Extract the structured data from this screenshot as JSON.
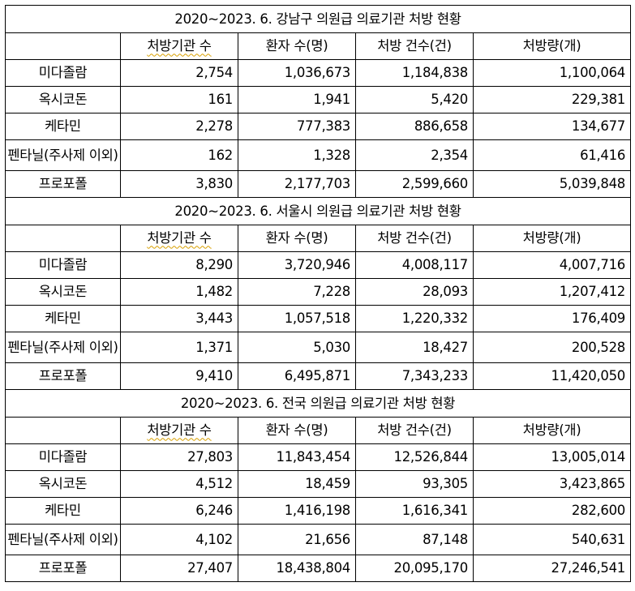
{
  "columns": [
    "처방기관 수",
    "환자 수(명)",
    "처방 건수(건)",
    "처방량(개)"
  ],
  "sections": [
    {
      "title": "2020~2023. 6. 강남구 의원급 의료기관 처방 현황",
      "rows": [
        {
          "drug": "미다졸람",
          "institutions": "2,754",
          "patients": "1,036,673",
          "prescriptions": "1,184,838",
          "quantity": "1,100,064"
        },
        {
          "drug": "옥시코돈",
          "institutions": "161",
          "patients": "1,941",
          "prescriptions": "5,420",
          "quantity": "229,381"
        },
        {
          "drug": "케타민",
          "institutions": "2,278",
          "patients": "777,383",
          "prescriptions": "886,658",
          "quantity": "134,677"
        },
        {
          "drug": "펜타닐(주사제 이외)",
          "institutions": "162",
          "patients": "1,328",
          "prescriptions": "2,354",
          "quantity": "61,416"
        },
        {
          "drug": "프로포폴",
          "institutions": "3,830",
          "patients": "2,177,703",
          "prescriptions": "2,599,660",
          "quantity": "5,039,848"
        }
      ]
    },
    {
      "title": "2020~2023. 6. 서울시 의원급 의료기관 처방 현황",
      "rows": [
        {
          "drug": "미다졸람",
          "institutions": "8,290",
          "patients": "3,720,946",
          "prescriptions": "4,008,117",
          "quantity": "4,007,716"
        },
        {
          "drug": "옥시코돈",
          "institutions": "1,482",
          "patients": "7,228",
          "prescriptions": "28,093",
          "quantity": "1,207,412"
        },
        {
          "drug": "케타민",
          "institutions": "3,443",
          "patients": "1,057,518",
          "prescriptions": "1,220,332",
          "quantity": "176,409"
        },
        {
          "drug": "펜타닐(주사제 이외)",
          "institutions": "1,371",
          "patients": "5,030",
          "prescriptions": "18,427",
          "quantity": "200,528"
        },
        {
          "drug": "프로포폴",
          "institutions": "9,410",
          "patients": "6,495,871",
          "prescriptions": "7,343,233",
          "quantity": "11,420,050"
        }
      ]
    },
    {
      "title": "2020~2023. 6. 전국 의원급 의료기관 처방 현황",
      "rows": [
        {
          "drug": "미다졸람",
          "institutions": "27,803",
          "patients": "11,843,454",
          "prescriptions": "12,526,844",
          "quantity": "13,005,014"
        },
        {
          "drug": "옥시코돈",
          "institutions": "4,512",
          "patients": "18,459",
          "prescriptions": "93,305",
          "quantity": "3,423,865"
        },
        {
          "drug": "케타민",
          "institutions": "6,246",
          "patients": "1,416,198",
          "prescriptions": "1,616,341",
          "quantity": "282,600"
        },
        {
          "drug": "펜타닐(주사제 이외)",
          "institutions": "4,102",
          "patients": "21,656",
          "prescriptions": "87,148",
          "quantity": "540,631"
        },
        {
          "drug": "프로포폴",
          "institutions": "27,407",
          "patients": "18,438,804",
          "prescriptions": "20,095,170",
          "quantity": "27,246,541"
        }
      ]
    }
  ]
}
